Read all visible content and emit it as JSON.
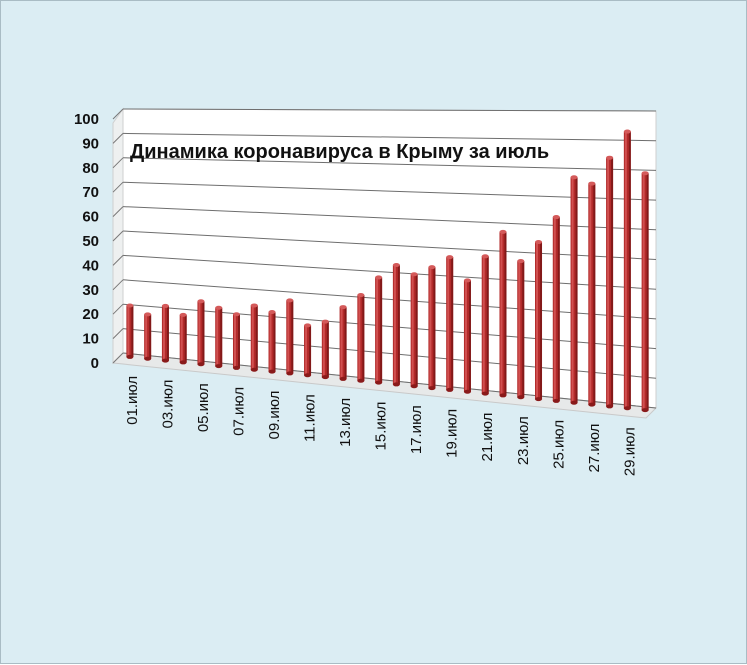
{
  "chart_data": {
    "type": "bar",
    "title": "Динамика  коронавируса в Крыму за июль",
    "xlabel": "",
    "ylabel": "",
    "ylim": [
      0,
      100
    ],
    "yticks": [
      0,
      10,
      20,
      30,
      40,
      50,
      60,
      70,
      80,
      90,
      100
    ],
    "grid": true,
    "three_d": true,
    "bar_color": "#b22a2a",
    "categories": [
      "01.июл",
      "02.июл",
      "03.июл",
      "04.июл",
      "05.июл",
      "06.июл",
      "07.июл",
      "08.июл",
      "09.июл",
      "10.июл",
      "11.июл",
      "12.июл",
      "13.июл",
      "14.июл",
      "15.июл",
      "16.июл",
      "17.июл",
      "18.июл",
      "19.июл",
      "20.июл",
      "21.июл",
      "22.июл",
      "23.июл",
      "24.июл",
      "25.июл",
      "26.июл",
      "27.июл",
      "28.июл",
      "29.июл",
      "30.июл"
    ],
    "shown_labels": [
      "01.июл",
      "03.июл",
      "05.июл",
      "07.июл",
      "09.июл",
      "11.июл",
      "13.июл",
      "15.июл",
      "17.июл",
      "19.июл",
      "21.июл",
      "23.июл",
      "25.июл",
      "27.июл",
      "29.июл"
    ],
    "values": [
      21,
      18,
      22,
      19,
      25,
      23,
      21,
      25,
      23,
      28,
      19,
      21,
      27,
      32,
      39,
      44,
      41,
      44,
      48,
      40,
      49,
      58,
      48,
      55,
      64,
      78,
      76,
      85,
      94,
      80
    ]
  }
}
